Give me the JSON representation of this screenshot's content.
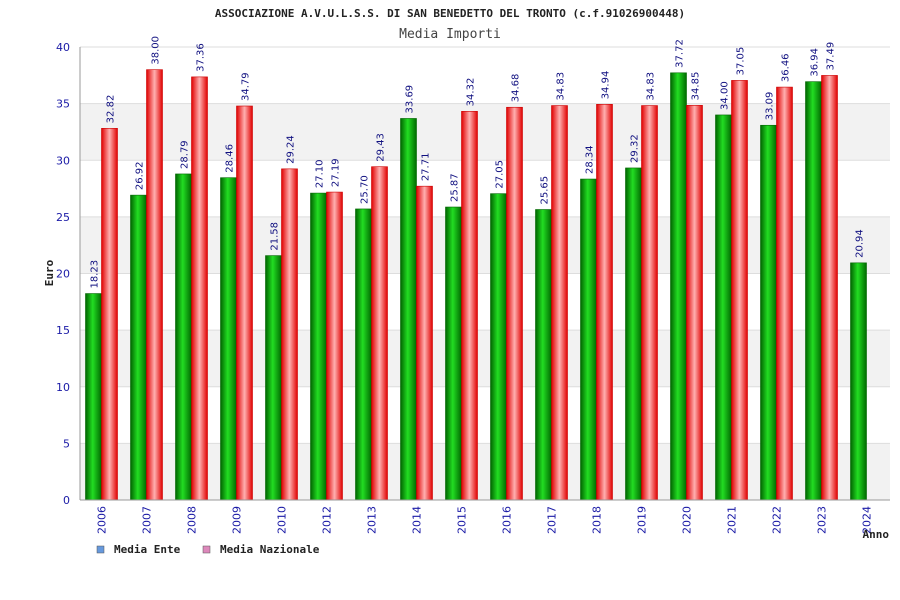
{
  "chart_data": {
    "type": "bar",
    "title": "ASSOCIAZIONE A.V.U.L.S.S. DI SAN BENEDETTO DEL TRONTO (c.f.91026900448)",
    "subtitle": "Media Importi",
    "ylabel": "Euro",
    "xlabel": "Anno",
    "ylim": [
      0,
      40
    ],
    "yticks": [
      "0",
      "5",
      "10",
      "15",
      "20",
      "25",
      "30",
      "35",
      "40"
    ],
    "categories": [
      "2006",
      "2007",
      "2008",
      "2009",
      "2010",
      "2012",
      "2013",
      "2014",
      "2015",
      "2016",
      "2017",
      "2018",
      "2019",
      "2020",
      "2021",
      "2022",
      "2023",
      "2024"
    ],
    "series": [
      {
        "name": "Media Ente",
        "color": "#00aa00",
        "legend_color": "#6699dd",
        "values": [
          18.23,
          26.92,
          28.79,
          28.46,
          21.58,
          27.1,
          25.7,
          33.69,
          25.87,
          27.05,
          25.65,
          28.34,
          29.32,
          37.72,
          34.0,
          33.09,
          36.94,
          20.94
        ],
        "labels": [
          "18.23",
          "26.92",
          "28.79",
          "28.46",
          "21.58",
          "27.10",
          "25.70",
          "33.69",
          "25.87",
          "27.05",
          "25.65",
          "28.34",
          "29.32",
          "37.72",
          "34.00",
          "33.09",
          "36.94",
          "20.94"
        ]
      },
      {
        "name": "Media Nazionale",
        "color": "#ee2222",
        "legend_color": "#dd88bb",
        "values": [
          32.82,
          38.0,
          37.36,
          34.79,
          29.24,
          27.19,
          29.43,
          27.71,
          34.32,
          34.68,
          34.83,
          34.94,
          34.83,
          34.85,
          37.05,
          36.46,
          37.49,
          null
        ],
        "labels": [
          "32.82",
          "38.00",
          "37.36",
          "34.79",
          "29.24",
          "27.19",
          "29.43",
          "27.71",
          "34.32",
          "34.68",
          "34.83",
          "34.94",
          "34.83",
          "34.85",
          "37.05",
          "36.46",
          "37.49",
          ""
        ]
      }
    ],
    "legend_position": "bottom-left"
  }
}
